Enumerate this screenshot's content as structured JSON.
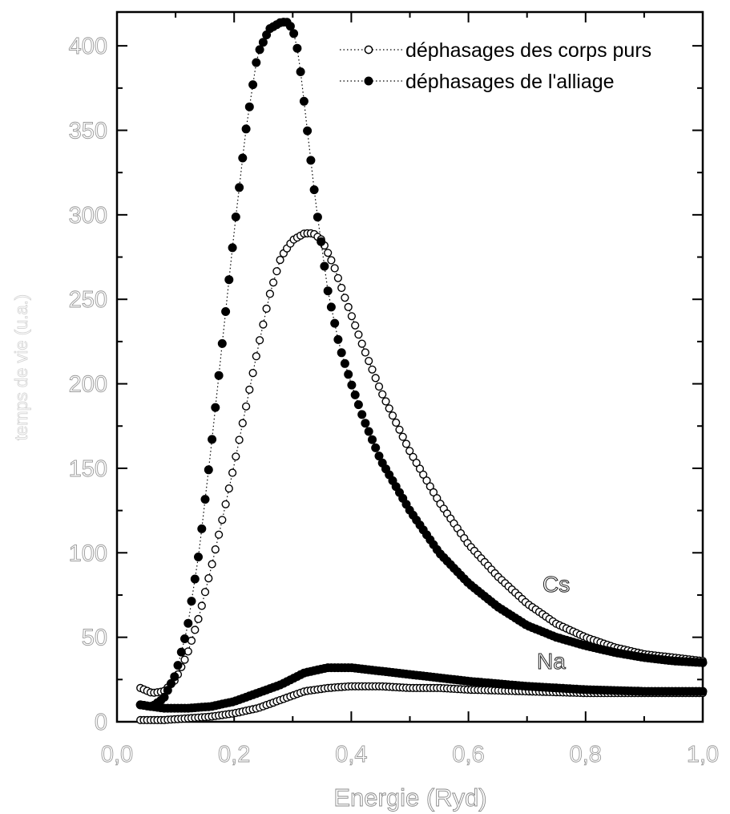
{
  "chart_data": {
    "type": "scatter",
    "xlabel": "Energie (Ryd)",
    "ylabel": "temps de vie (u.a.)",
    "xlim": [
      0.0,
      1.0
    ],
    "ylim": [
      0,
      420
    ],
    "x_ticks": [
      "0,0",
      "0,2",
      "0,4",
      "0,6",
      "0,8",
      "1,0"
    ],
    "y_ticks": [
      "0",
      "50",
      "100",
      "150",
      "200",
      "250",
      "300",
      "350",
      "400"
    ],
    "grid": false,
    "legend_position": "top-right",
    "legend": [
      {
        "label": "déphasages des corps purs",
        "marker": "open-circle",
        "color": "#000000"
      },
      {
        "label": "déphasages de l'alliage",
        "marker": "filled-circle",
        "color": "#000000"
      }
    ],
    "annotations": [
      "Cs",
      "Na"
    ],
    "series": [
      {
        "name": "Cs - déphasages des corps purs",
        "marker": "open",
        "x": [
          0.04,
          0.06,
          0.08,
          0.1,
          0.12,
          0.14,
          0.16,
          0.18,
          0.2,
          0.22,
          0.24,
          0.26,
          0.28,
          0.3,
          0.32,
          0.335,
          0.35,
          0.37,
          0.39,
          0.42,
          0.45,
          0.5,
          0.55,
          0.6,
          0.65,
          0.7,
          0.75,
          0.8,
          0.85,
          0.9,
          0.95,
          1.0
        ],
        "y": [
          20,
          17,
          18,
          25,
          40,
          62,
          90,
          120,
          152,
          186,
          220,
          252,
          275,
          285,
          289,
          289,
          285,
          270,
          250,
          222,
          196,
          160,
          130,
          105,
          86,
          70,
          58,
          50,
          44,
          40,
          38,
          36
        ]
      },
      {
        "name": "Cs - déphasages de l'alliage",
        "marker": "filled",
        "x": [
          0.04,
          0.06,
          0.08,
          0.1,
          0.12,
          0.14,
          0.16,
          0.18,
          0.2,
          0.22,
          0.24,
          0.26,
          0.28,
          0.29,
          0.3,
          0.31,
          0.32,
          0.34,
          0.36,
          0.38,
          0.4,
          0.42,
          0.45,
          0.5,
          0.55,
          0.6,
          0.65,
          0.7,
          0.75,
          0.8,
          0.85,
          0.9,
          0.95,
          1.0
        ],
        "y": [
          10,
          9,
          14,
          28,
          55,
          100,
          160,
          225,
          290,
          350,
          395,
          410,
          414,
          414,
          410,
          395,
          365,
          305,
          255,
          222,
          200,
          180,
          155,
          125,
          100,
          82,
          68,
          57,
          50,
          45,
          41,
          38,
          36,
          35
        ]
      },
      {
        "name": "Na - déphasages des corps purs",
        "marker": "open",
        "x": [
          0.04,
          0.08,
          0.12,
          0.16,
          0.2,
          0.24,
          0.28,
          0.32,
          0.36,
          0.4,
          0.45,
          0.5,
          0.55,
          0.6,
          0.7,
          0.8,
          0.9,
          1.0
        ],
        "y": [
          1,
          1,
          2,
          3,
          5,
          8,
          13,
          18,
          20,
          21,
          21,
          20,
          20,
          19,
          18,
          17,
          17,
          17
        ]
      },
      {
        "name": "Na - déphasages de l'alliage",
        "marker": "filled",
        "x": [
          0.04,
          0.08,
          0.12,
          0.16,
          0.2,
          0.24,
          0.28,
          0.32,
          0.36,
          0.4,
          0.45,
          0.5,
          0.55,
          0.6,
          0.7,
          0.8,
          0.9,
          1.0
        ],
        "y": [
          10,
          8,
          8,
          9,
          12,
          17,
          22,
          29,
          32,
          32,
          30,
          28,
          26,
          24,
          21,
          19,
          18,
          18
        ]
      }
    ]
  }
}
